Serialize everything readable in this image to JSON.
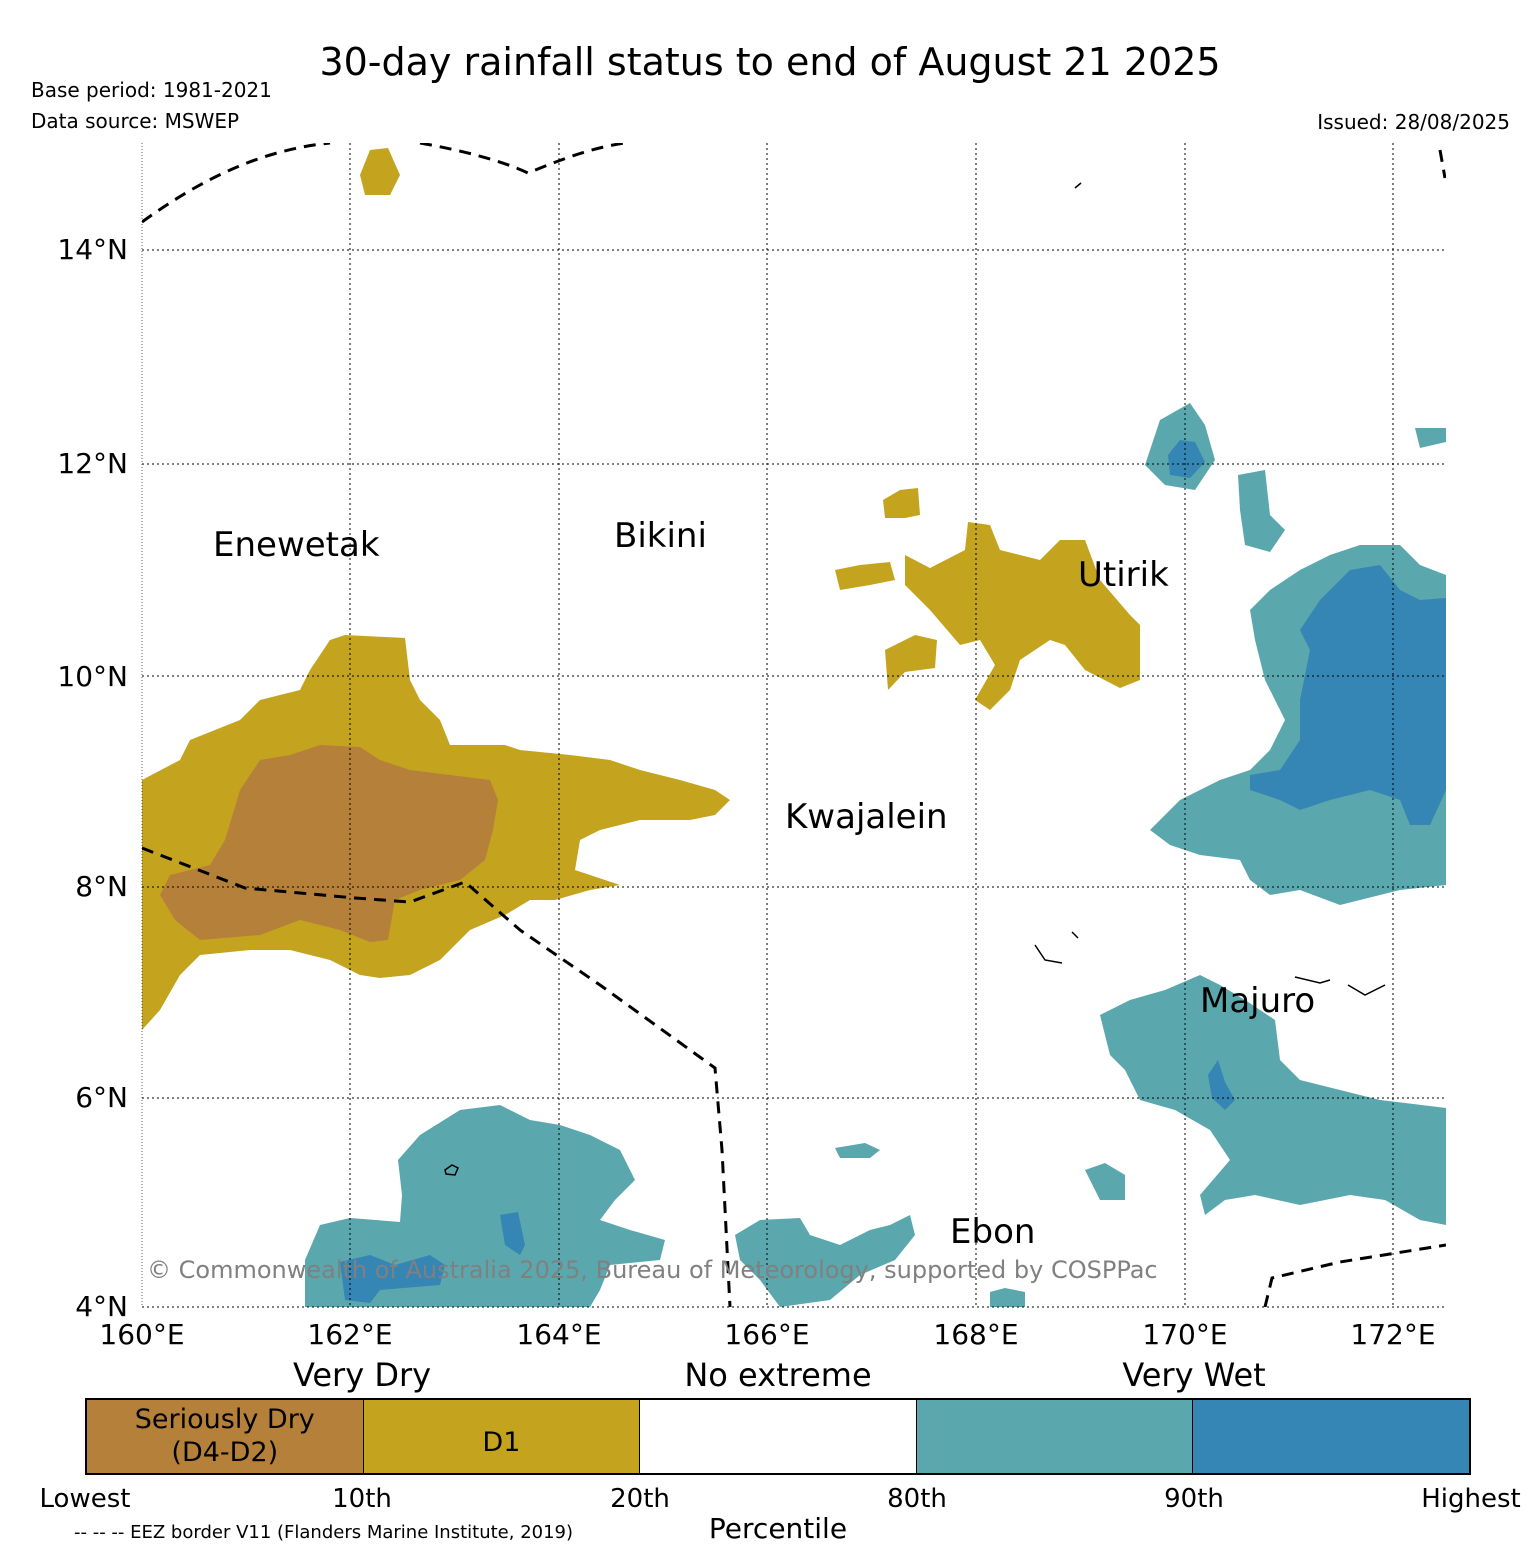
{
  "header": {
    "title": "30-day rainfall status to end of August 21 2025",
    "base_period": "Base period: 1981-2021",
    "data_source": "Data source: MSWEP",
    "issued": "Issued: 28/08/2025"
  },
  "map": {
    "lat_labels": [
      "14°N",
      "12°N",
      "10°N",
      "8°N",
      "6°N",
      "4°N"
    ],
    "lon_labels": [
      "160°E",
      "162°E",
      "164°E",
      "166°E",
      "168°E",
      "170°E",
      "172°E"
    ],
    "places": [
      "Enewetak",
      "Bikini",
      "Utirik",
      "Kwajalein",
      "Majuro",
      "Ebon"
    ],
    "copyright": "© Commonwealth of Australia 2025, Bureau of Meteorology, supported by COSPPac",
    "colors": {
      "seriously_dry": "#b5803a",
      "d1": "#c4a41e",
      "no_extreme": "#ffffff",
      "very_wet_80": "#5aa8ad",
      "very_wet_90": "#3585b5"
    }
  },
  "legend": {
    "headings": [
      "Very Dry",
      "No extreme",
      "Very Wet"
    ],
    "categories": [
      {
        "label": "Seriously Dry\n(D4-D2)",
        "color": "#b5803a"
      },
      {
        "label": "D1",
        "color": "#c4a41e"
      },
      {
        "label": "",
        "color": "#ffffff"
      },
      {
        "label": "",
        "color": "#5aa8ad"
      },
      {
        "label": "",
        "color": "#3585b5"
      }
    ],
    "ticks": [
      "Lowest",
      "10th",
      "20th",
      "80th",
      "90th",
      "Highest"
    ],
    "axis_label": "Percentile",
    "eez_note": "-- -- -- EEZ border V11 (Flanders Marine Institute, 2019)"
  }
}
